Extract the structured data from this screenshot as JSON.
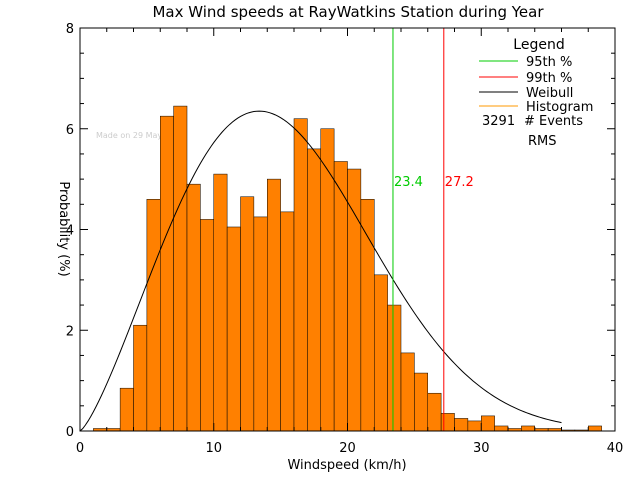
{
  "chart_data": {
    "type": "bar",
    "title": "Max Wind speeds at RayWatkins Station during Year",
    "xlabel": "Windspeed (km/h)",
    "ylabel": "Probability (%)",
    "watermark": "Made on 29 May 2025",
    "xlim": [
      0,
      40
    ],
    "ylim": [
      0,
      8
    ],
    "x_ticks": [
      0,
      10,
      20,
      30,
      40
    ],
    "y_ticks": [
      0,
      2,
      4,
      6,
      8
    ],
    "bin_width": 1,
    "bins_start": [
      1,
      2,
      3,
      4,
      5,
      6,
      7,
      8,
      9,
      10,
      11,
      12,
      13,
      14,
      15,
      16,
      17,
      18,
      19,
      20,
      21,
      22,
      23,
      24,
      25,
      26,
      27,
      28,
      29,
      30,
      31,
      32,
      33,
      34,
      35,
      36,
      37,
      38
    ],
    "histogram": [
      0.05,
      0.05,
      0.85,
      2.1,
      4.6,
      6.25,
      6.45,
      4.9,
      4.2,
      5.1,
      4.05,
      4.65,
      4.25,
      5.0,
      4.35,
      6.2,
      5.6,
      6.0,
      5.35,
      5.2,
      4.6,
      3.1,
      2.5,
      1.55,
      1.15,
      0.75,
      0.35,
      0.25,
      0.2,
      0.3,
      0.1,
      0.05,
      0.1,
      0.05,
      0.05,
      0.02,
      0.02,
      0.1
    ],
    "weibull_peak": {
      "x": 13.4,
      "y": 6.35
    },
    "p95": 23.4,
    "p99": 27.2,
    "p95_label": "23.4",
    "p99_label": "27.2",
    "events": "3291",
    "colors": {
      "histogram": "#ff8000",
      "p95": "#00cc00",
      "p99": "#ff0000",
      "weibull": "#000000",
      "legend_histogram": "#ff9900"
    },
    "legend": {
      "title": "Legend",
      "items": [
        {
          "label": "95th %",
          "color": "#00cc00"
        },
        {
          "label": "99th %",
          "color": "#ff0000"
        },
        {
          "label": "Weibull",
          "color": "#000000"
        },
        {
          "label": "Histogram",
          "color": "#ff9900"
        }
      ],
      "events_label": "# Events",
      "rms_label": "RMS"
    }
  }
}
